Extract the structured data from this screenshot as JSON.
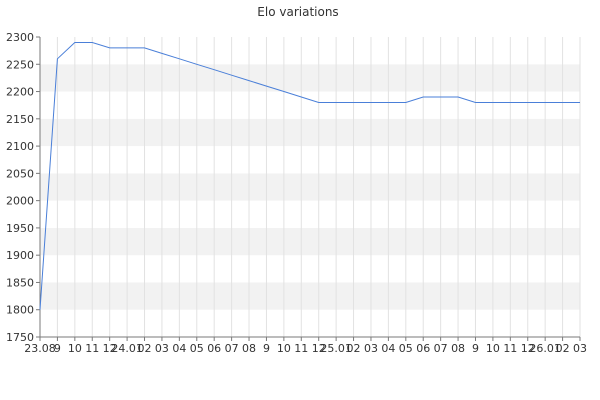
{
  "chart_data": {
    "type": "line",
    "title": "Elo variations",
    "xlabel": "",
    "ylabel": "",
    "ylim": [
      1750,
      2300
    ],
    "y_ticks": [
      1750,
      1800,
      1850,
      1900,
      1950,
      2000,
      2050,
      2100,
      2150,
      2200,
      2250,
      2300
    ],
    "x_tick_labels": [
      "23.08",
      "9",
      "10",
      "11",
      "12",
      "24.01",
      "02",
      "03",
      "04",
      "05",
      "06",
      "07",
      "08",
      "9",
      "10",
      "11",
      "12",
      "25.01",
      "02",
      "03",
      "04",
      "05",
      "06",
      "07",
      "08",
      "9",
      "10",
      "11",
      "12",
      "26.01",
      "02",
      "03"
    ],
    "grid": true,
    "alternating_bands": true,
    "legend": "none",
    "colors": {
      "line": "#4a7fd8",
      "band": "#f2f2f2",
      "grid": "#e2e2e2",
      "axis": "#7a7a7a"
    },
    "series": [
      {
        "values": [
          1800,
          2260,
          2290,
          2290,
          2280,
          2280,
          2280,
          2270,
          2260,
          2250,
          2240,
          2230,
          2220,
          2210,
          2200,
          2190,
          2180,
          2180,
          2180,
          2180,
          2180,
          2180,
          2190,
          2190,
          2190,
          2180,
          2180,
          2180,
          2180,
          2180,
          2180,
          2180
        ]
      }
    ]
  }
}
